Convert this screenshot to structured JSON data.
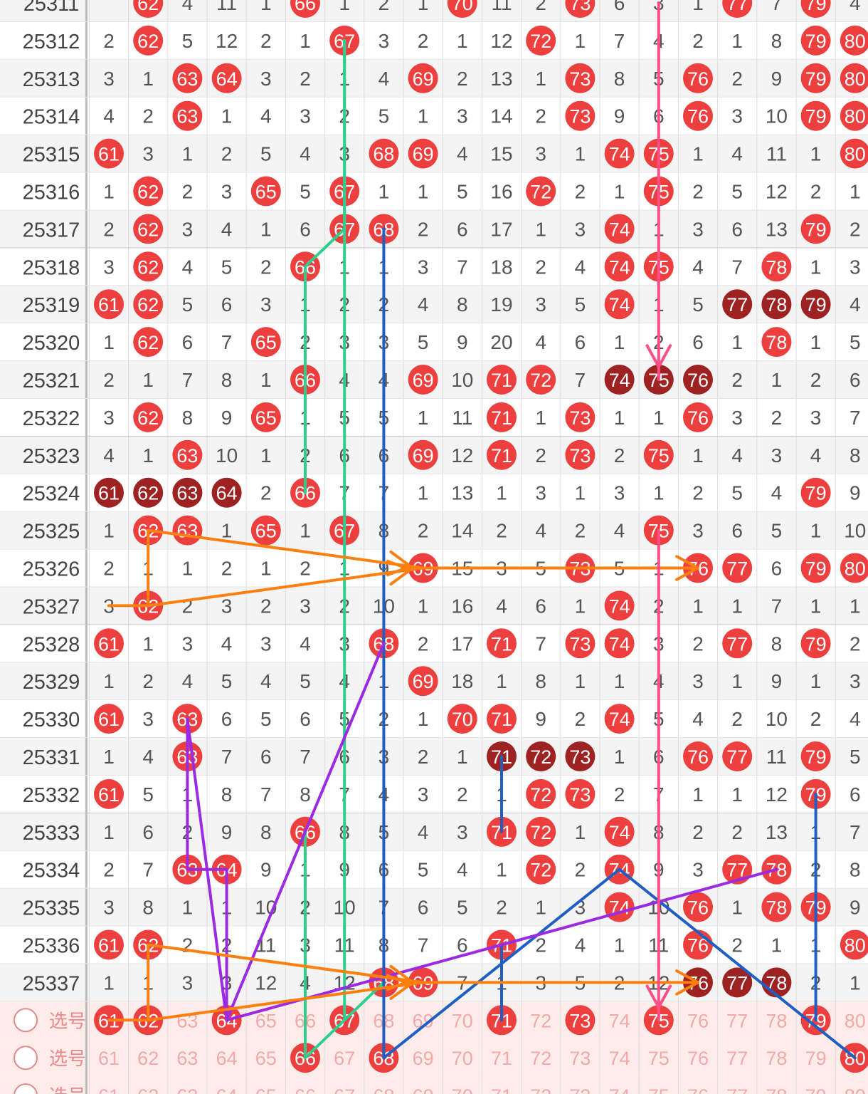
{
  "columns": [
    "61",
    "62",
    "63",
    "64",
    "65",
    "66",
    "67",
    "68",
    "69",
    "70",
    "71",
    "72",
    "73",
    "74",
    "75",
    "76",
    "77",
    "78",
    "79",
    "80"
  ],
  "rows": [
    {
      "period": "25311",
      "cells": [
        "",
        "62",
        "4",
        "11",
        "1",
        "66",
        "1",
        "2",
        "1",
        "70",
        "11",
        "2",
        "73",
        "6",
        "3",
        "1",
        "77",
        "7",
        "79",
        "4"
      ]
    },
    {
      "period": "25312",
      "cells": [
        "2",
        "62",
        "5",
        "12",
        "2",
        "1",
        "67",
        "3",
        "2",
        "1",
        "12",
        "72",
        "1",
        "7",
        "4",
        "2",
        "1",
        "8",
        "79",
        "80"
      ]
    },
    {
      "period": "25313",
      "cells": [
        "3",
        "1",
        "63",
        "64",
        "3",
        "2",
        "1",
        "4",
        "69",
        "2",
        "13",
        "1",
        "73",
        "8",
        "5",
        "76",
        "2",
        "9",
        "79",
        "80"
      ]
    },
    {
      "period": "25314",
      "cells": [
        "4",
        "2",
        "63",
        "1",
        "4",
        "3",
        "2",
        "5",
        "1",
        "3",
        "14",
        "2",
        "73",
        "9",
        "6",
        "76",
        "3",
        "10",
        "79",
        "80"
      ]
    },
    {
      "period": "25315",
      "cells": [
        "61",
        "3",
        "1",
        "2",
        "5",
        "4",
        "3",
        "68",
        "69",
        "4",
        "15",
        "3",
        "1",
        "74",
        "75",
        "1",
        "4",
        "11",
        "1",
        "80"
      ]
    },
    {
      "period": "25316",
      "cells": [
        "1",
        "62",
        "2",
        "3",
        "65",
        "5",
        "67",
        "1",
        "1",
        "5",
        "16",
        "72",
        "2",
        "1",
        "75",
        "2",
        "5",
        "12",
        "2",
        "1"
      ]
    },
    {
      "period": "25317",
      "cells": [
        "2",
        "62",
        "3",
        "4",
        "1",
        "6",
        "67",
        "68",
        "2",
        "6",
        "17",
        "1",
        "3",
        "74",
        "1",
        "3",
        "6",
        "13",
        "79",
        "2"
      ]
    },
    {
      "period": "25318",
      "cells": [
        "3",
        "62",
        "4",
        "5",
        "2",
        "66",
        "1",
        "1",
        "3",
        "7",
        "18",
        "2",
        "4",
        "74",
        "75",
        "4",
        "7",
        "78",
        "1",
        "3"
      ]
    },
    {
      "period": "25319",
      "cells": [
        "61",
        "62",
        "5",
        "6",
        "3",
        "1",
        "2",
        "2",
        "4",
        "8",
        "19",
        "3",
        "5",
        "74",
        "1",
        "5",
        "77",
        "78",
        "79",
        "4"
      ]
    },
    {
      "period": "25320",
      "cells": [
        "1",
        "62",
        "6",
        "7",
        "65",
        "2",
        "3",
        "3",
        "5",
        "9",
        "20",
        "4",
        "6",
        "1",
        "2",
        "6",
        "1",
        "78",
        "1",
        "5"
      ]
    },
    {
      "period": "25321",
      "cells": [
        "2",
        "1",
        "7",
        "8",
        "1",
        "66",
        "4",
        "4",
        "69",
        "10",
        "71",
        "72",
        "7",
        "74",
        "75",
        "76",
        "2",
        "1",
        "2",
        "6"
      ]
    },
    {
      "period": "25322",
      "cells": [
        "3",
        "62",
        "8",
        "9",
        "65",
        "1",
        "5",
        "5",
        "1",
        "11",
        "71",
        "1",
        "73",
        "1",
        "1",
        "76",
        "3",
        "2",
        "3",
        "7"
      ]
    },
    {
      "period": "25323",
      "cells": [
        "4",
        "1",
        "63",
        "10",
        "1",
        "2",
        "6",
        "6",
        "69",
        "12",
        "71",
        "2",
        "73",
        "2",
        "75",
        "1",
        "4",
        "3",
        "4",
        "8"
      ]
    },
    {
      "period": "25324",
      "cells": [
        "61",
        "62",
        "63",
        "64",
        "2",
        "66",
        "7",
        "7",
        "1",
        "13",
        "1",
        "3",
        "1",
        "3",
        "1",
        "2",
        "5",
        "4",
        "79",
        "9"
      ]
    },
    {
      "period": "25325",
      "cells": [
        "1",
        "62",
        "63",
        "1",
        "65",
        "1",
        "67",
        "8",
        "2",
        "14",
        "2",
        "4",
        "2",
        "4",
        "75",
        "3",
        "6",
        "5",
        "1",
        "10"
      ]
    },
    {
      "period": "25326",
      "cells": [
        "2",
        "1",
        "1",
        "2",
        "1",
        "2",
        "1",
        "9",
        "69",
        "15",
        "3",
        "5",
        "73",
        "5",
        "1",
        "76",
        "77",
        "6",
        "79",
        "80"
      ]
    },
    {
      "period": "25327",
      "cells": [
        "3",
        "62",
        "2",
        "3",
        "2",
        "3",
        "2",
        "10",
        "1",
        "16",
        "4",
        "6",
        "1",
        "74",
        "2",
        "1",
        "1",
        "7",
        "1",
        "1"
      ]
    },
    {
      "period": "25328",
      "cells": [
        "61",
        "1",
        "3",
        "4",
        "3",
        "4",
        "3",
        "68",
        "2",
        "17",
        "71",
        "7",
        "73",
        "74",
        "3",
        "2",
        "77",
        "8",
        "79",
        "2"
      ]
    },
    {
      "period": "25329",
      "cells": [
        "1",
        "2",
        "4",
        "5",
        "4",
        "5",
        "4",
        "1",
        "69",
        "18",
        "1",
        "8",
        "1",
        "1",
        "4",
        "3",
        "1",
        "9",
        "1",
        "3"
      ]
    },
    {
      "period": "25330",
      "cells": [
        "61",
        "3",
        "63",
        "6",
        "5",
        "6",
        "5",
        "2",
        "1",
        "70",
        "71",
        "9",
        "2",
        "74",
        "5",
        "4",
        "2",
        "10",
        "2",
        "4"
      ]
    },
    {
      "period": "25331",
      "cells": [
        "1",
        "4",
        "63",
        "7",
        "6",
        "7",
        "6",
        "3",
        "2",
        "1",
        "71",
        "72",
        "73",
        "1",
        "6",
        "76",
        "77",
        "11",
        "79",
        "5"
      ]
    },
    {
      "period": "25332",
      "cells": [
        "61",
        "5",
        "1",
        "8",
        "7",
        "8",
        "7",
        "4",
        "3",
        "2",
        "1",
        "72",
        "73",
        "2",
        "7",
        "1",
        "1",
        "12",
        "79",
        "6"
      ]
    },
    {
      "period": "25333",
      "cells": [
        "1",
        "6",
        "2",
        "9",
        "8",
        "66",
        "8",
        "5",
        "4",
        "3",
        "71",
        "72",
        "1",
        "74",
        "8",
        "2",
        "2",
        "13",
        "1",
        "7"
      ]
    },
    {
      "period": "25334",
      "cells": [
        "2",
        "7",
        "63",
        "64",
        "9",
        "1",
        "9",
        "6",
        "5",
        "4",
        "1",
        "72",
        "2",
        "74",
        "9",
        "3",
        "77",
        "78",
        "2",
        "8"
      ]
    },
    {
      "period": "25335",
      "cells": [
        "3",
        "8",
        "1",
        "1",
        "10",
        "2",
        "10",
        "7",
        "6",
        "5",
        "2",
        "1",
        "3",
        "74",
        "10",
        "76",
        "1",
        "78",
        "79",
        "9"
      ]
    },
    {
      "period": "25336",
      "cells": [
        "61",
        "62",
        "2",
        "2",
        "11",
        "3",
        "11",
        "8",
        "7",
        "6",
        "71",
        "2",
        "4",
        "1",
        "11",
        "76",
        "2",
        "1",
        "1",
        "80"
      ]
    },
    {
      "period": "25337",
      "cells": [
        "1",
        "1",
        "3",
        "3",
        "12",
        "4",
        "12",
        "68",
        "69",
        "7",
        "1",
        "3",
        "5",
        "2",
        "12",
        "76",
        "77",
        "78",
        "2",
        "1"
      ]
    }
  ],
  "dark_balls": [
    [
      "25319",
      "77"
    ],
    [
      "25319",
      "78"
    ],
    [
      "25319",
      "79"
    ],
    [
      "25321",
      "74"
    ],
    [
      "25321",
      "75"
    ],
    [
      "25321",
      "76"
    ],
    [
      "25324",
      "61"
    ],
    [
      "25324",
      "62"
    ],
    [
      "25324",
      "63"
    ],
    [
      "25324",
      "64"
    ],
    [
      "25331",
      "71"
    ],
    [
      "25331",
      "72"
    ],
    [
      "25331",
      "73"
    ],
    [
      "25337",
      "76"
    ],
    [
      "25337",
      "77"
    ],
    [
      "25337",
      "78"
    ]
  ],
  "select_label": "选号",
  "select_rows": [
    {
      "balls": [
        "61",
        "62",
        "64",
        "67",
        "71",
        "73",
        "75",
        "79"
      ]
    },
    {
      "balls": [
        "66",
        "68",
        "80"
      ]
    },
    {
      "balls": []
    }
  ],
  "colors": {
    "ball_red": "#ee3f3f",
    "ball_dark": "#9e2222",
    "select_bg": "#fdecea",
    "select_text": "#f0aaaa",
    "row_alt": "#f4f4f4",
    "line_green": "#2ecf8e",
    "line_blue": "#1f5fc4",
    "line_pink": "#ff4d88",
    "line_orange": "#ff7f0e",
    "line_purple": "#9b2be2"
  },
  "trend_lines": [
    {
      "color": "#2ecf8e",
      "points": [
        [
          "25312",
          "67"
        ],
        [
          "25317",
          "67"
        ],
        [
          "25318",
          "66"
        ],
        [
          "25324",
          "66"
        ]
      ]
    },
    {
      "color": "#2ecf8e",
      "points": [
        [
          "25312",
          "67"
        ],
        [
          "select1",
          "67"
        ]
      ]
    },
    {
      "color": "#2ecf8e",
      "points": [
        [
          "25333",
          "66"
        ],
        [
          "select2",
          "66"
        ],
        [
          "25337",
          "68"
        ]
      ]
    },
    {
      "color": "#1f5fc4",
      "points": [
        [
          "25317",
          "68"
        ],
        [
          "select2",
          "68"
        ]
      ]
    },
    {
      "color": "#1f5fc4",
      "points": [
        [
          "25331",
          "71"
        ],
        [
          "25333",
          "71"
        ]
      ]
    },
    {
      "color": "#1f5fc4",
      "points": [
        [
          "25336",
          "71"
        ],
        [
          "select1",
          "71"
        ]
      ]
    },
    {
      "color": "#1f5fc4",
      "points": [
        [
          "25332",
          "79"
        ],
        [
          "select1",
          "79"
        ]
      ]
    },
    {
      "color": "#1f5fc4",
      "points": [
        [
          "select2",
          "68"
        ],
        [
          "25334",
          "74"
        ],
        [
          "select2",
          "80"
        ]
      ]
    },
    {
      "color": "#9b2be2",
      "points": [
        [
          "25330",
          "63"
        ],
        [
          "25334",
          "63"
        ],
        [
          "25334",
          "64"
        ],
        [
          "select1",
          "64"
        ],
        [
          "25328",
          "68"
        ]
      ]
    },
    {
      "color": "#9b2be2",
      "points": [
        [
          "25330",
          "63"
        ],
        [
          "select1",
          "64"
        ],
        [
          "25334",
          "78"
        ]
      ]
    },
    {
      "color": "#ff7f0e",
      "points": [
        [
          "25325",
          "62"
        ],
        [
          "25327",
          "62"
        ],
        [
          "25327",
          "61"
        ]
      ]
    },
    {
      "color": "#ff7f0e",
      "points": [
        [
          "25326",
          "69"
        ],
        [
          "25326",
          "76"
        ]
      ],
      "arrow": true
    },
    {
      "color": "#ff7f0e",
      "points": [
        [
          "25336",
          "62"
        ],
        [
          "select1",
          "62"
        ],
        [
          "select1",
          "61"
        ]
      ]
    },
    {
      "color": "#ff7f0e",
      "points": [
        [
          "25337",
          "69"
        ],
        [
          "25337",
          "76"
        ]
      ],
      "arrow": true
    }
  ],
  "arrow_lines": [
    {
      "color": "#ff4d88",
      "points": [
        [
          "25311",
          "75"
        ],
        [
          "25321",
          "75"
        ]
      ]
    },
    {
      "color": "#ff4d88",
      "points": [
        [
          "25325",
          "75"
        ],
        [
          "select1",
          "75"
        ]
      ]
    },
    {
      "color": "#ff7f0e",
      "points": [
        [
          "25325",
          "62"
        ],
        [
          "25326",
          "69"
        ]
      ]
    },
    {
      "color": "#ff7f0e",
      "points": [
        [
          "25327",
          "62"
        ],
        [
          "25326",
          "69"
        ]
      ]
    },
    {
      "color": "#ff7f0e",
      "points": [
        [
          "25336",
          "62"
        ],
        [
          "25337",
          "69"
        ]
      ]
    },
    {
      "color": "#ff7f0e",
      "points": [
        [
          "select1",
          "62"
        ],
        [
          "25337",
          "69"
        ]
      ]
    }
  ]
}
